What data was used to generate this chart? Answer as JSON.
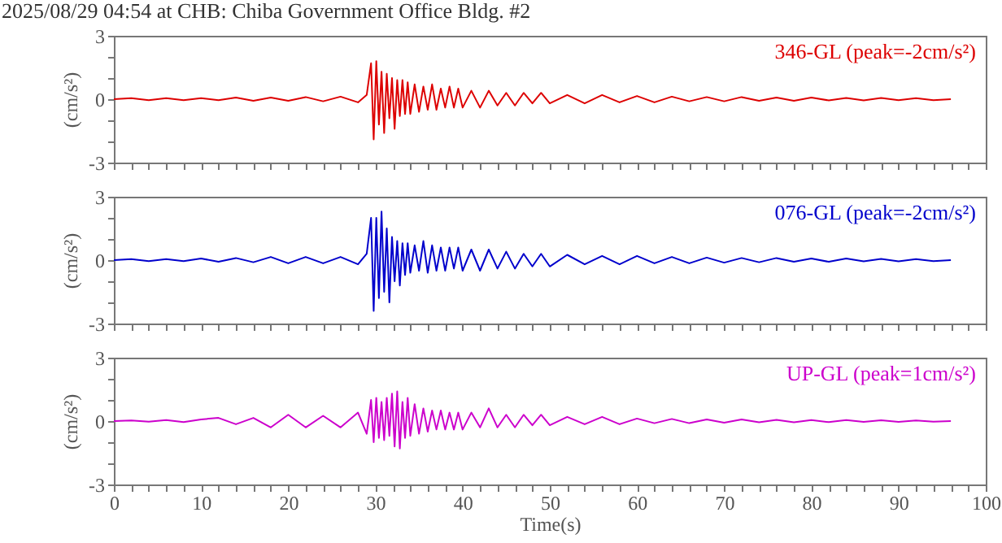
{
  "chart_data": [
    {
      "type": "line",
      "title": "2025/08/29 04:54 at CHB: Chiba Government Office Bldg. #2",
      "ylabel": "(cm/s²)",
      "xlim": [
        0,
        100
      ],
      "ylim": [
        -3,
        3
      ],
      "tick_labels": "y",
      "grid": false,
      "marker": "none",
      "xticks": [
        0,
        {
          "value": 2,
          "label": null
        },
        {
          "value": 4,
          "label": null
        },
        {
          "value": 6,
          "label": null
        },
        {
          "value": 8,
          "label": null
        },
        10,
        {
          "value": 12,
          "label": null
        },
        {
          "value": 14,
          "label": null
        },
        {
          "value": 16,
          "label": null
        },
        {
          "value": 18,
          "label": null
        },
        20,
        {
          "value": 22,
          "label": null
        },
        {
          "value": 24,
          "label": null
        },
        {
          "value": 26,
          "label": null
        },
        {
          "value": 28,
          "label": null
        },
        30,
        {
          "value": 32,
          "label": null
        },
        {
          "value": 34,
          "label": null
        },
        {
          "value": 36,
          "label": null
        },
        {
          "value": 38,
          "label": null
        },
        40,
        {
          "value": 42,
          "label": null
        },
        {
          "value": 44,
          "label": null
        },
        {
          "value": 46,
          "label": null
        },
        {
          "value": 48,
          "label": null
        },
        50,
        {
          "value": 52,
          "label": null
        },
        {
          "value": 54,
          "label": null
        },
        {
          "value": 56,
          "label": null
        },
        {
          "value": 58,
          "label": null
        },
        60,
        {
          "value": 62,
          "label": null
        },
        {
          "value": 64,
          "label": null
        },
        {
          "value": 66,
          "label": null
        },
        {
          "value": 68,
          "label": null
        },
        70,
        {
          "value": 72,
          "label": null
        },
        {
          "value": 74,
          "label": null
        },
        {
          "value": 76,
          "label": null
        },
        {
          "value": 78,
          "label": null
        },
        80,
        {
          "value": 82,
          "label": null
        },
        {
          "value": 84,
          "label": null
        },
        {
          "value": 86,
          "label": null
        },
        {
          "value": 88,
          "label": null
        },
        90,
        {
          "value": 92,
          "label": null
        },
        {
          "value": 94,
          "label": null
        },
        {
          "value": 96,
          "label": null
        },
        {
          "value": 98,
          "label": null
        },
        100
      ],
      "yticks": [
        -3,
        {
          "value": -2,
          "label": null
        },
        {
          "value": -1,
          "label": null
        },
        0,
        {
          "value": 1,
          "label": null
        },
        {
          "value": 2,
          "label": null
        },
        3
      ],
      "x": [
        0,
        2,
        4,
        6,
        8,
        10,
        12,
        14,
        16,
        18,
        20,
        22,
        24,
        26,
        28,
        29,
        29.5,
        29.8,
        30.1,
        30.4,
        30.7,
        31,
        31.3,
        31.6,
        31.9,
        32.2,
        32.5,
        32.8,
        33.1,
        33.4,
        33.7,
        34,
        34.5,
        35,
        35.5,
        36,
        36.5,
        37,
        37.5,
        38,
        38.5,
        39,
        39.5,
        40,
        41,
        42,
        43,
        44,
        45,
        46,
        47,
        48,
        49,
        50,
        52,
        54,
        56,
        58,
        60,
        62,
        64,
        66,
        68,
        70,
        72,
        74,
        76,
        78,
        80,
        82,
        84,
        86,
        88,
        90,
        92,
        94,
        96
      ],
      "series": [
        {
          "name": "346-GL (peak=-2cm/s²)",
          "color": "#dd0000",
          "values": [
            0,
            0.05,
            -0.05,
            0.05,
            -0.05,
            0.05,
            -0.05,
            0.08,
            -0.08,
            0.08,
            -0.08,
            0.1,
            -0.1,
            0.12,
            -0.15,
            0.2,
            1.7,
            -1.9,
            1.8,
            -1.2,
            1.3,
            -1.6,
            1.2,
            -0.9,
            1.0,
            -1.4,
            0.9,
            -0.8,
            0.9,
            -0.7,
            0.8,
            -0.7,
            0.7,
            -0.6,
            0.6,
            -0.5,
            0.7,
            -0.5,
            0.5,
            -0.4,
            0.6,
            -0.4,
            0.5,
            -0.4,
            0.4,
            -0.4,
            0.4,
            -0.3,
            0.3,
            -0.3,
            0.3,
            -0.2,
            0.3,
            -0.2,
            0.2,
            -0.2,
            0.2,
            -0.15,
            0.15,
            -0.15,
            0.12,
            -0.1,
            0.1,
            -0.1,
            0.1,
            -0.08,
            0.08,
            -0.08,
            0.08,
            -0.06,
            0.06,
            -0.06,
            0.06,
            -0.05,
            0.05,
            -0.05,
            0
          ]
        }
      ]
    },
    {
      "type": "line",
      "ylabel": "(cm/s²)",
      "xlim": [
        0,
        100
      ],
      "ylim": [
        -3,
        3
      ],
      "tick_labels": "y",
      "grid": false,
      "marker": "none",
      "xticks": [
        0,
        {
          "value": 2,
          "label": null
        },
        {
          "value": 4,
          "label": null
        },
        {
          "value": 6,
          "label": null
        },
        {
          "value": 8,
          "label": null
        },
        10,
        {
          "value": 12,
          "label": null
        },
        {
          "value": 14,
          "label": null
        },
        {
          "value": 16,
          "label": null
        },
        {
          "value": 18,
          "label": null
        },
        20,
        {
          "value": 22,
          "label": null
        },
        {
          "value": 24,
          "label": null
        },
        {
          "value": 26,
          "label": null
        },
        {
          "value": 28,
          "label": null
        },
        30,
        {
          "value": 32,
          "label": null
        },
        {
          "value": 34,
          "label": null
        },
        {
          "value": 36,
          "label": null
        },
        {
          "value": 38,
          "label": null
        },
        40,
        {
          "value": 42,
          "label": null
        },
        {
          "value": 44,
          "label": null
        },
        {
          "value": 46,
          "label": null
        },
        {
          "value": 48,
          "label": null
        },
        50,
        {
          "value": 52,
          "label": null
        },
        {
          "value": 54,
          "label": null
        },
        {
          "value": 56,
          "label": null
        },
        {
          "value": 58,
          "label": null
        },
        60,
        {
          "value": 62,
          "label": null
        },
        {
          "value": 64,
          "label": null
        },
        {
          "value": 66,
          "label": null
        },
        {
          "value": 68,
          "label": null
        },
        70,
        {
          "value": 72,
          "label": null
        },
        {
          "value": 74,
          "label": null
        },
        {
          "value": 76,
          "label": null
        },
        {
          "value": 78,
          "label": null
        },
        80,
        {
          "value": 82,
          "label": null
        },
        {
          "value": 84,
          "label": null
        },
        {
          "value": 86,
          "label": null
        },
        {
          "value": 88,
          "label": null
        },
        90,
        {
          "value": 92,
          "label": null
        },
        {
          "value": 94,
          "label": null
        },
        {
          "value": 96,
          "label": null
        },
        {
          "value": 98,
          "label": null
        },
        100
      ],
      "yticks": [
        -3,
        {
          "value": -2,
          "label": null
        },
        {
          "value": -1,
          "label": null
        },
        0,
        {
          "value": 1,
          "label": null
        },
        {
          "value": 2,
          "label": null
        },
        3
      ],
      "x": [
        0,
        2,
        4,
        6,
        8,
        10,
        12,
        14,
        16,
        18,
        20,
        22,
        24,
        26,
        28,
        29,
        29.5,
        29.8,
        30.1,
        30.4,
        30.7,
        31,
        31.3,
        31.6,
        31.9,
        32.2,
        32.5,
        32.8,
        33.1,
        33.4,
        33.7,
        34,
        34.5,
        35,
        35.5,
        36,
        36.5,
        37,
        37.5,
        38,
        38.5,
        39,
        39.5,
        40,
        41,
        42,
        43,
        44,
        45,
        46,
        47,
        48,
        49,
        50,
        52,
        54,
        56,
        58,
        60,
        62,
        64,
        66,
        68,
        70,
        72,
        74,
        76,
        78,
        80,
        82,
        84,
        86,
        88,
        90,
        92,
        94,
        96
      ],
      "series": [
        {
          "name": "076-GL (peak=-2cm/s²)",
          "color": "#0000cc",
          "values": [
            0,
            0.05,
            -0.05,
            0.05,
            -0.05,
            0.08,
            -0.08,
            0.1,
            -0.1,
            0.15,
            -0.15,
            0.15,
            -0.15,
            0.15,
            -0.2,
            0.3,
            2.0,
            -2.4,
            2.0,
            -1.8,
            2.3,
            -1.5,
            1.5,
            -2.0,
            1.1,
            -1.0,
            0.9,
            -1.2,
            0.8,
            -0.7,
            0.8,
            -0.6,
            0.7,
            -0.5,
            0.9,
            -0.6,
            0.7,
            -0.5,
            0.6,
            -0.5,
            0.6,
            -0.4,
            0.6,
            -0.5,
            0.5,
            -0.5,
            0.5,
            -0.4,
            0.4,
            -0.4,
            0.3,
            -0.3,
            0.3,
            -0.3,
            0.25,
            -0.2,
            0.2,
            -0.2,
            0.2,
            -0.15,
            0.15,
            -0.15,
            0.12,
            -0.12,
            0.1,
            -0.1,
            0.1,
            -0.08,
            0.08,
            -0.08,
            0.08,
            -0.06,
            0.06,
            -0.06,
            0.05,
            -0.05,
            0
          ]
        }
      ]
    },
    {
      "type": "line",
      "xlabel": "Time(s)",
      "ylabel": "(cm/s²)",
      "xlim": [
        0,
        100
      ],
      "ylim": [
        -3,
        3
      ],
      "grid": false,
      "marker": "none",
      "xticks": [
        0,
        {
          "value": 2,
          "label": null
        },
        {
          "value": 4,
          "label": null
        },
        {
          "value": 6,
          "label": null
        },
        {
          "value": 8,
          "label": null
        },
        10,
        {
          "value": 12,
          "label": null
        },
        {
          "value": 14,
          "label": null
        },
        {
          "value": 16,
          "label": null
        },
        {
          "value": 18,
          "label": null
        },
        20,
        {
          "value": 22,
          "label": null
        },
        {
          "value": 24,
          "label": null
        },
        {
          "value": 26,
          "label": null
        },
        {
          "value": 28,
          "label": null
        },
        30,
        {
          "value": 32,
          "label": null
        },
        {
          "value": 34,
          "label": null
        },
        {
          "value": 36,
          "label": null
        },
        {
          "value": 38,
          "label": null
        },
        40,
        {
          "value": 42,
          "label": null
        },
        {
          "value": 44,
          "label": null
        },
        {
          "value": 46,
          "label": null
        },
        {
          "value": 48,
          "label": null
        },
        50,
        {
          "value": 52,
          "label": null
        },
        {
          "value": 54,
          "label": null
        },
        {
          "value": 56,
          "label": null
        },
        {
          "value": 58,
          "label": null
        },
        60,
        {
          "value": 62,
          "label": null
        },
        {
          "value": 64,
          "label": null
        },
        {
          "value": 66,
          "label": null
        },
        {
          "value": 68,
          "label": null
        },
        70,
        {
          "value": 72,
          "label": null
        },
        {
          "value": 74,
          "label": null
        },
        {
          "value": 76,
          "label": null
        },
        {
          "value": 78,
          "label": null
        },
        80,
        {
          "value": 82,
          "label": null
        },
        {
          "value": 84,
          "label": null
        },
        {
          "value": 86,
          "label": null
        },
        {
          "value": 88,
          "label": null
        },
        90,
        {
          "value": 92,
          "label": null
        },
        {
          "value": 94,
          "label": null
        },
        {
          "value": 96,
          "label": null
        },
        {
          "value": 98,
          "label": null
        },
        100
      ],
      "yticks": [
        -3,
        {
          "value": -2,
          "label": null
        },
        {
          "value": -1,
          "label": null
        },
        0,
        {
          "value": 1,
          "label": null
        },
        {
          "value": 2,
          "label": null
        },
        3
      ],
      "x": [
        0,
        2,
        4,
        6,
        8,
        10,
        12,
        14,
        16,
        18,
        20,
        22,
        24,
        26,
        28,
        29,
        29.5,
        29.8,
        30.1,
        30.4,
        30.7,
        31,
        31.3,
        31.6,
        31.9,
        32.2,
        32.5,
        32.8,
        33.1,
        33.4,
        33.7,
        34,
        34.5,
        35,
        35.5,
        36,
        36.5,
        37,
        37.5,
        38,
        38.5,
        39,
        39.5,
        40,
        41,
        42,
        43,
        44,
        45,
        46,
        47,
        48,
        49,
        50,
        52,
        54,
        56,
        58,
        60,
        62,
        64,
        66,
        68,
        70,
        72,
        74,
        76,
        78,
        80,
        82,
        84,
        86,
        88,
        90,
        92,
        94,
        96
      ],
      "series": [
        {
          "name": "UP-GL (peak=1cm/s²)",
          "color": "#cc00cc",
          "values": [
            0,
            0.03,
            -0.03,
            0.05,
            -0.05,
            0.08,
            0.15,
            -0.15,
            0.15,
            -0.3,
            0.3,
            -0.3,
            0.25,
            -0.3,
            0.4,
            -0.6,
            1.0,
            -1.0,
            1.1,
            -0.8,
            0.9,
            -0.9,
            1.1,
            -0.7,
            1.3,
            -1.2,
            1.4,
            -1.3,
            0.9,
            -0.8,
            1.1,
            -0.7,
            0.8,
            -0.6,
            0.6,
            -0.5,
            0.5,
            -0.4,
            0.5,
            -0.4,
            0.4,
            -0.4,
            0.4,
            -0.4,
            0.4,
            -0.3,
            0.6,
            -0.3,
            0.3,
            -0.3,
            0.3,
            -0.2,
            0.3,
            -0.2,
            0.2,
            -0.15,
            0.2,
            -0.15,
            0.12,
            -0.1,
            0.1,
            -0.1,
            0.08,
            -0.08,
            0.08,
            -0.06,
            0.06,
            -0.06,
            0.05,
            -0.05,
            0.05,
            -0.04,
            0.04,
            -0.04,
            0.03,
            -0.03,
            0
          ]
        }
      ]
    }
  ]
}
